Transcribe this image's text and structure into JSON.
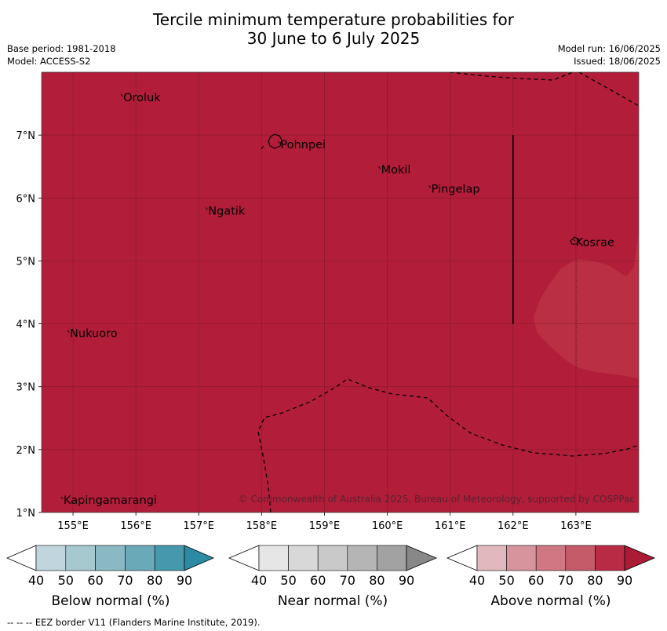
{
  "title_line1": "Tercile minimum temperature probabilities for",
  "title_line2": "30 June to 6 July 2025",
  "meta": {
    "base_period": "Base period: 1981-2018",
    "model": "Model: ACCESS-S2",
    "model_run": "Model run: 16/06/2025",
    "issued": "Issued: 18/06/2025"
  },
  "map": {
    "extent": {
      "lon": [
        154.5,
        164.0
      ],
      "lat": [
        1.0,
        8.0
      ]
    },
    "fill_color": "#b21e3a",
    "light_patch_color": "#bb2f44",
    "lon_ticks": [
      "155°E",
      "156°E",
      "157°E",
      "158°E",
      "159°E",
      "160°E",
      "161°E",
      "162°E",
      "163°E"
    ],
    "lat_ticks": [
      "1°N",
      "2°N",
      "3°N",
      "4°N",
      "5°N",
      "6°N",
      "7°N"
    ],
    "places": [
      {
        "name": "Oroluk",
        "lon": 155.8,
        "lat": 7.6
      },
      {
        "name": "Pohnpei",
        "lon": 158.3,
        "lat": 6.85
      },
      {
        "name": "Mokil",
        "lon": 159.9,
        "lat": 6.45
      },
      {
        "name": "Pingelap",
        "lon": 160.7,
        "lat": 6.15
      },
      {
        "name": "Ngatik",
        "lon": 157.15,
        "lat": 5.8
      },
      {
        "name": "Kosrae",
        "lon": 163.0,
        "lat": 5.3
      },
      {
        "name": "Nukuoro",
        "lon": 154.95,
        "lat": 3.85
      },
      {
        "name": "Kapingamarangi",
        "lon": 154.85,
        "lat": 1.2
      }
    ],
    "copyright": "© Commonwealth of Australia 2025, Bureau of Meteorology, supported by COSPPac"
  },
  "colorbars": [
    {
      "name": "below",
      "title": "Below normal (%)",
      "colors": [
        "#c0d6dc",
        "#a6c8cf",
        "#8ab9c3",
        "#6aaab8",
        "#4699ad"
      ],
      "arrow": "#2d8aa4"
    },
    {
      "name": "near",
      "title": "Near normal (%)",
      "colors": [
        "#e6e6e6",
        "#d8d8d8",
        "#c9c9c9",
        "#b5b5b5",
        "#a2a2a2"
      ],
      "arrow": "#888888"
    },
    {
      "name": "above",
      "title": "Above normal (%)",
      "colors": [
        "#e2b8bf",
        "#d8949d",
        "#cf7782",
        "#c55a69",
        "#b92b45"
      ],
      "arrow": "#ab1b35"
    }
  ],
  "colorbar_ticks": [
    "40",
    "50",
    "60",
    "70",
    "80",
    "90"
  ],
  "footer": "--  --  -- EEZ border V11 (Flanders Marine Institute, 2019)."
}
